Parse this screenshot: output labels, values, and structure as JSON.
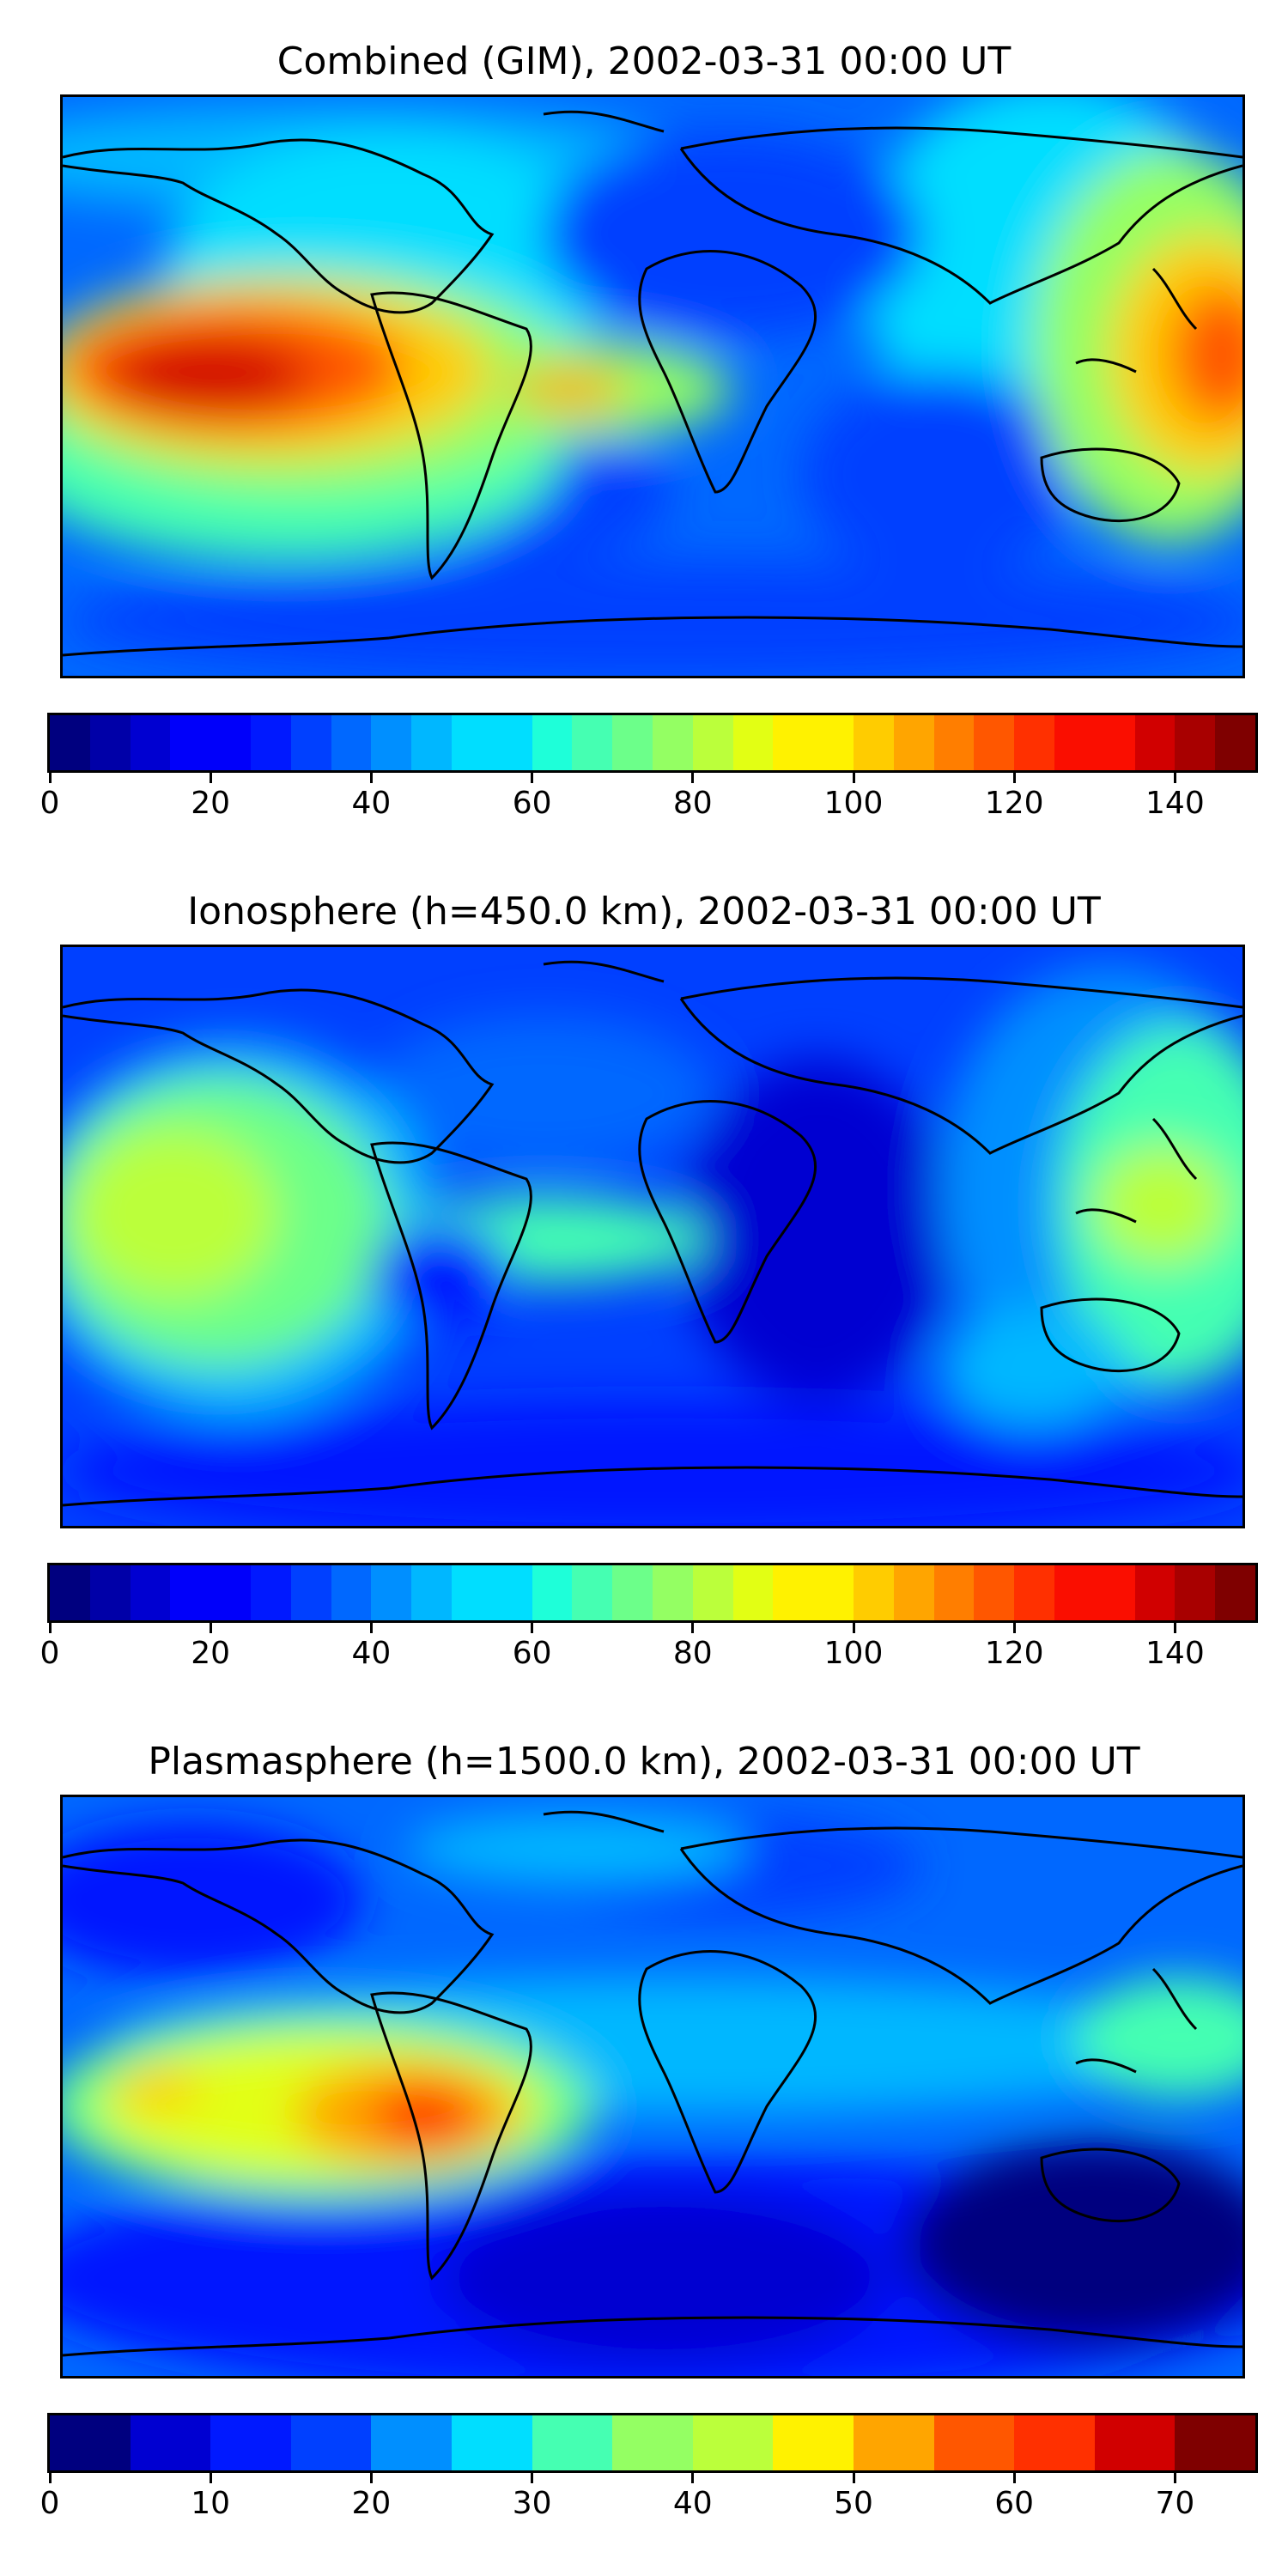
{
  "palette": [
    "#00007f",
    "#0000a8",
    "#0000d1",
    "#0000fa",
    "#0019ff",
    "#0040ff",
    "#0068ff",
    "#008fff",
    "#00b7ff",
    "#00deff",
    "#1effd9",
    "#45ffb2",
    "#6cff8a",
    "#94ff63",
    "#bbff3b",
    "#e2ff14",
    "#fff200",
    "#ffcc00",
    "#ffa500",
    "#ff7e00",
    "#ff5700",
    "#ff3000",
    "#fa0e00",
    "#d10000",
    "#a80000",
    "#7f0000"
  ],
  "panels": [
    {
      "title": "Combined (GIM), 2002-03-31 00:00 UT",
      "colorbar": {
        "min": 0,
        "max": 150,
        "step": 5,
        "ticks": [
          0,
          20,
          40,
          60,
          80,
          100,
          120,
          140
        ]
      }
    },
    {
      "title": "Ionosphere  (h=450.0 km), 2002-03-31 00:00 UT",
      "colorbar": {
        "min": 0,
        "max": 150,
        "step": 5,
        "ticks": [
          0,
          20,
          40,
          60,
          80,
          100,
          120,
          140
        ]
      }
    },
    {
      "title": "Plasmasphere (h=1500.0 km), 2002-03-31 00:00 UT",
      "colorbar": {
        "min": 0,
        "max": 75,
        "step": 5,
        "ticks": [
          0,
          10,
          20,
          30,
          40,
          50,
          60,
          70
        ]
      }
    }
  ]
}
